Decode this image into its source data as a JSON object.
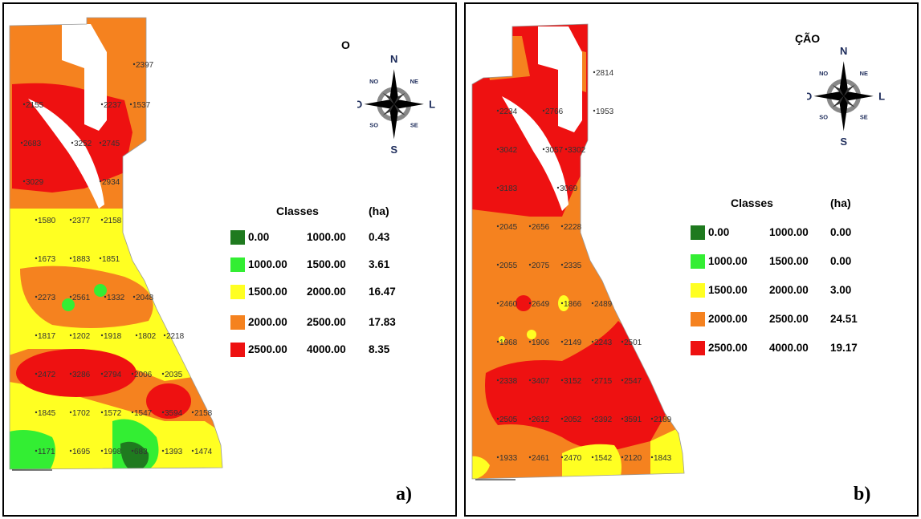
{
  "colors": {
    "class_0": "#1f7a1f",
    "class_1": "#33ee33",
    "class_2": "#ffff22",
    "class_3": "#f5821f",
    "class_4": "#ee1111"
  },
  "compass_labels": {
    "n": "N",
    "s": "S",
    "w": "O",
    "e": "L",
    "nw": "NO",
    "ne": "NE",
    "sw": "SO",
    "se": "SE"
  },
  "panels": [
    {
      "title": "O",
      "panel_label": "a)",
      "legend": {
        "header_classes": "Classes",
        "header_area": "(ha)",
        "rows": [
          {
            "from": "0.00",
            "to": "1000.00",
            "area": "0.43"
          },
          {
            "from": "1000.00",
            "to": "1500.00",
            "area": "3.61"
          },
          {
            "from": "1500.00",
            "to": "2000.00",
            "area": "16.47"
          },
          {
            "from": "2000.00",
            "to": "2500.00",
            "area": "17.83"
          },
          {
            "from": "2500.00",
            "to": "4000.00",
            "area": "8.35"
          }
        ]
      },
      "points": [
        "2397",
        "2155",
        "2237",
        "1537",
        "2683",
        "3252",
        "2745",
        "3029",
        "2934",
        "1580",
        "2377",
        "2158",
        "1673",
        "1883",
        "1851",
        "2273",
        "2561",
        "1332",
        "2048",
        "1817",
        "1202",
        "1918",
        "1802",
        "2218",
        "2472",
        "3286",
        "2794",
        "2006",
        "2035",
        "1845",
        "1702",
        "1572",
        "1547",
        "3594",
        "2158",
        "1171",
        "1695",
        "1998",
        "683",
        "1393",
        "1474"
      ]
    },
    {
      "title": "ÇÃO",
      "panel_label": "b)",
      "legend": {
        "header_classes": "Classes",
        "header_area": "(ha)",
        "rows": [
          {
            "from": "0.00",
            "to": "1000.00",
            "area": "0.00"
          },
          {
            "from": "1000.00",
            "to": "1500.00",
            "area": "0.00"
          },
          {
            "from": "1500.00",
            "to": "2000.00",
            "area": "3.00"
          },
          {
            "from": "2000.00",
            "to": "2500.00",
            "area": "24.51"
          },
          {
            "from": "2500.00",
            "to": "4000.00",
            "area": "19.17"
          }
        ]
      },
      "points": [
        "2814",
        "2234",
        "2766",
        "1953",
        "3042",
        "3057",
        "3302",
        "3183",
        "3069",
        "2045",
        "2656",
        "2228",
        "2055",
        "2075",
        "2335",
        "2460",
        "2649",
        "1866",
        "2489",
        "1968",
        "1906",
        "2149",
        "2243",
        "2501",
        "2338",
        "3407",
        "3152",
        "2715",
        "2547",
        "2505",
        "2612",
        "2052",
        "2392",
        "3591",
        "2189",
        "1933",
        "2461",
        "2470",
        "1542",
        "2120",
        "1843"
      ]
    }
  ]
}
